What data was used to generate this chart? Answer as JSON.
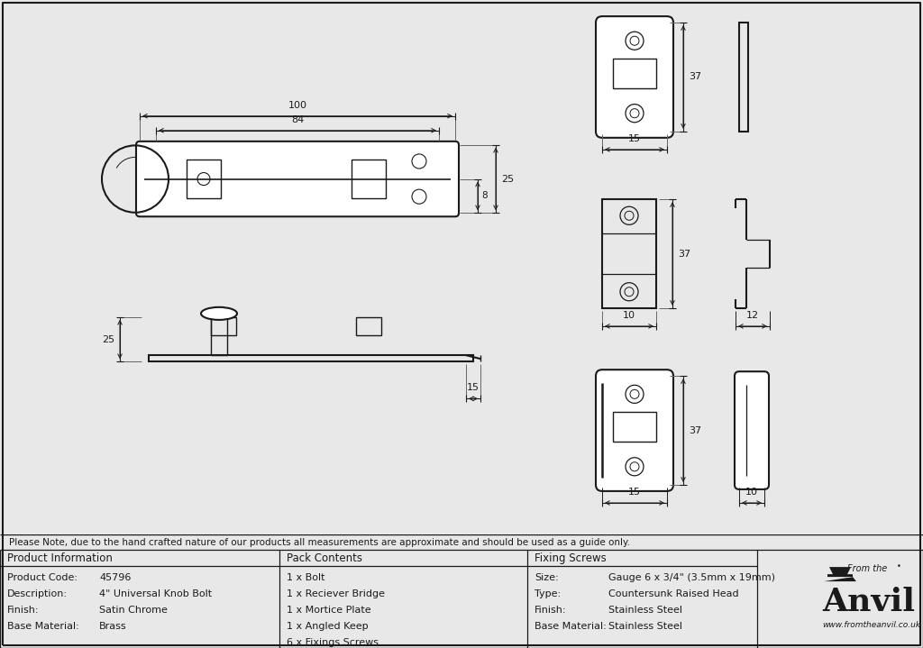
{
  "bg_color": "#e8e8e8",
  "drawing_bg": "#ffffff",
  "line_color": "#1a1a1a",
  "note_text": "Please Note, due to the hand crafted nature of our products all measurements are approximate and should be used as a guide only.",
  "product_info": {
    "header": "Product Information",
    "rows": [
      [
        "Product Code:",
        "45796"
      ],
      [
        "Description:",
        "4\" Universal Knob Bolt"
      ],
      [
        "Finish:",
        "Satin Chrome"
      ],
      [
        "Base Material:",
        "Brass"
      ]
    ]
  },
  "pack_contents": {
    "header": "Pack Contents",
    "rows": [
      "1 x Bolt",
      "1 x Reciever Bridge",
      "1 x Mortice Plate",
      "1 x Angled Keep",
      "6 x Fixings Screws"
    ]
  },
  "fixing_screws": {
    "header": "Fixing Screws",
    "rows": [
      [
        "Size:",
        "Gauge 6 x 3/4\" (3.5mm x 19mm)"
      ],
      [
        "Type:",
        "Countersunk Raised Head"
      ],
      [
        "Finish:",
        "Stainless Steel"
      ],
      [
        "Base Material:",
        "Stainless Steel"
      ]
    ]
  }
}
